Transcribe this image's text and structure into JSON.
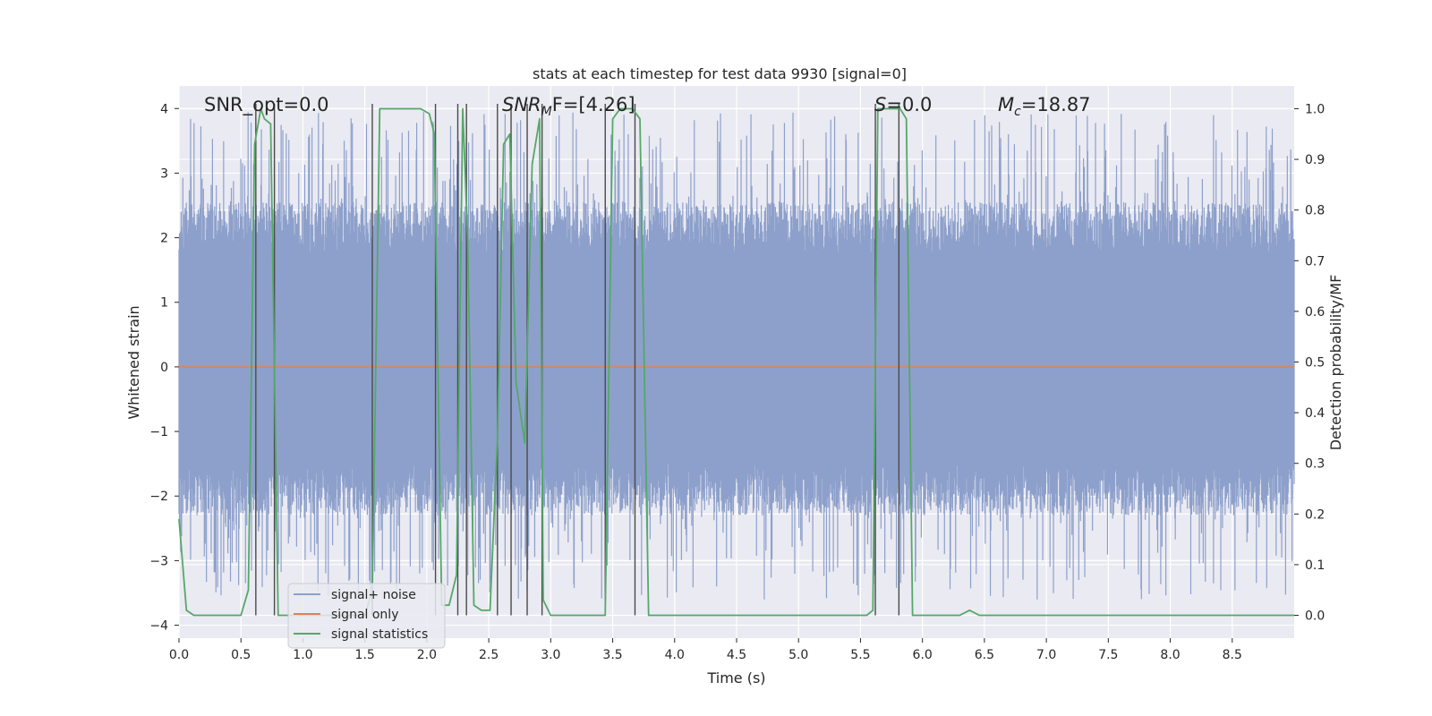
{
  "chart_data": {
    "type": "line",
    "title": "stats at each timestep for test data 9930 [signal=0]",
    "xlabel": "Time (s)",
    "ylabel": "Whitened strain",
    "y2label": "Detection probability/MF",
    "xlim": [
      0,
      9.0
    ],
    "ylim": [
      -4.2,
      4.35
    ],
    "y2lim": [
      -0.045,
      1.045
    ],
    "xticks": [
      "0.0",
      "0.5",
      "1.0",
      "1.5",
      "2.0",
      "2.5",
      "3.0",
      "3.5",
      "4.0",
      "4.5",
      "5.0",
      "5.5",
      "6.0",
      "6.5",
      "7.0",
      "7.5",
      "8.0",
      "8.5"
    ],
    "yticks": [
      "4",
      "3",
      "2",
      "1",
      "0",
      "−1",
      "−2",
      "−3",
      "−4"
    ],
    "y2ticks": [
      "1.0",
      "0.9",
      "0.8",
      "0.7",
      "0.6",
      "0.5",
      "0.4",
      "0.3",
      "0.2",
      "0.1",
      "0.0"
    ],
    "grid": true,
    "legend": {
      "placement": "lower-left"
    },
    "annotations": {
      "snr_opt": "SNR_opt=0.0",
      "snr_mf_main": "SNR",
      "snr_mf_sub": "M",
      "snr_mf_tail": "F=[4.26]",
      "s_var": "S",
      "s_value": "=0.0",
      "mc_var": "M",
      "mc_sub": "c",
      "mc_value": "=18.87"
    },
    "colors": {
      "noise": "#8da0cb",
      "signal": "#dd8452",
      "stats": "#55a868",
      "vlines": "#4a4a4a",
      "background": "#eaeaf2",
      "grid": "#ffffff"
    },
    "noise_envelope": {
      "typical_range": [
        -1.5,
        1.75
      ],
      "peak_range": [
        -3.6,
        3.95
      ]
    },
    "series": [
      {
        "name": "signal+ noise",
        "kind": "noise",
        "axis": "left"
      },
      {
        "name": "signal only",
        "kind": "line",
        "axis": "left",
        "x": [
          0,
          9.0
        ],
        "y": [
          0,
          0
        ]
      },
      {
        "name": "signal statistics",
        "kind": "line",
        "axis": "right",
        "x": [
          0,
          0.06,
          0.12,
          0.18,
          0.5,
          0.56,
          0.61,
          0.66,
          0.69,
          0.74,
          0.8,
          1.0,
          1.5,
          1.56,
          1.62,
          1.95,
          2.02,
          2.06,
          2.12,
          2.18,
          2.24,
          2.29,
          2.33,
          2.38,
          2.44,
          2.51,
          2.57,
          2.62,
          2.67,
          2.72,
          2.79,
          2.85,
          2.91,
          2.94,
          3.0,
          3.06,
          3.12,
          3.44,
          3.5,
          3.56,
          3.6,
          3.66,
          3.72,
          3.79,
          3.85,
          4.0,
          5.0,
          5.55,
          5.6,
          5.64,
          5.7,
          5.82,
          5.87,
          5.92,
          6.2,
          6.3,
          6.38,
          6.46,
          7.0,
          8.0,
          9.0
        ],
        "y": [
          0.19,
          0.01,
          0.0,
          0.0,
          0.0,
          0.05,
          0.93,
          1.0,
          0.98,
          0.97,
          0.0,
          0.0,
          0.0,
          0.05,
          1.0,
          1.0,
          0.99,
          0.95,
          0.02,
          0.02,
          0.08,
          1.0,
          0.74,
          0.02,
          0.01,
          0.01,
          0.35,
          0.93,
          0.95,
          0.46,
          0.34,
          0.89,
          0.98,
          0.03,
          0.0,
          0.0,
          0.0,
          0.0,
          0.98,
          1.0,
          1.0,
          1.0,
          0.98,
          0.0,
          0.0,
          0.0,
          0.0,
          0.0,
          0.01,
          1.0,
          1.0,
          1.0,
          0.98,
          0.0,
          0.0,
          0.0,
          0.01,
          0.0,
          0.0,
          0.0,
          0.0
        ]
      },
      {
        "name": "",
        "kind": "vlines",
        "x": [
          0.62,
          0.77,
          1.56,
          2.07,
          2.25,
          2.32,
          2.57,
          2.68,
          2.81,
          2.93,
          3.44,
          3.68,
          5.62,
          5.81
        ],
        "y_range": [
          -0.045,
          1.045
        ]
      }
    ]
  }
}
